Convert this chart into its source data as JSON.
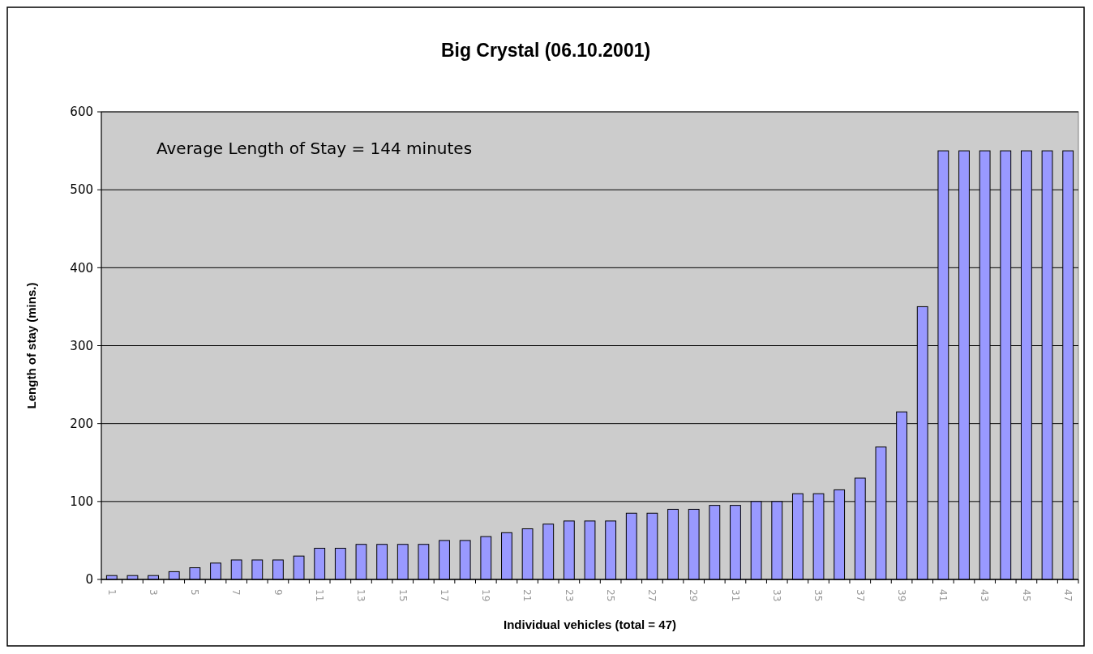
{
  "chart_data": {
    "type": "bar",
    "title": "Big Crystal (06.10.2001)",
    "xlabel": "Individual vehicles (total = 47)",
    "ylabel": "Length of stay (mins.)",
    "categories": [
      "1",
      null,
      "3",
      null,
      "5",
      null,
      "7",
      null,
      "9",
      null,
      "11",
      null,
      "13",
      null,
      "15",
      null,
      "17",
      null,
      "19",
      null,
      "21",
      null,
      "23",
      null,
      "25",
      null,
      "27",
      null,
      "29",
      null,
      "31",
      null,
      "33",
      null,
      "35",
      null,
      "37",
      null,
      "39",
      null,
      "41",
      null,
      "43",
      null,
      "45",
      null,
      "47"
    ],
    "values": [
      5,
      5,
      5,
      10,
      15,
      21,
      25,
      25,
      25,
      30,
      40,
      40,
      45,
      45,
      45,
      45,
      50,
      50,
      55,
      60,
      65,
      71,
      75,
      75,
      75,
      85,
      85,
      90,
      90,
      95,
      95,
      100,
      100,
      110,
      110,
      115,
      130,
      170,
      215,
      350,
      550,
      550,
      550,
      550,
      550,
      550,
      550
    ],
    "color": "#9999ff",
    "ylim": [
      0,
      600
    ],
    "yticks": [
      0,
      100,
      200,
      300,
      400,
      500,
      600
    ],
    "grid": "y",
    "annotations": [
      "Average Length of Stay = 144 minutes"
    ]
  }
}
